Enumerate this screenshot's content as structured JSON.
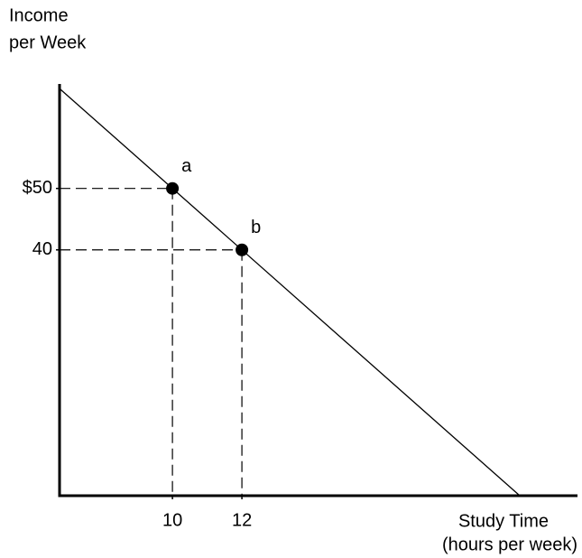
{
  "chart_data": {
    "type": "line",
    "y_label": [
      "Income",
      "per Week"
    ],
    "x_label": [
      "Study Time",
      "(hours per week)"
    ],
    "x": [
      6.75,
      20
    ],
    "values": [
      66.25,
      0
    ],
    "color": "#000000",
    "points": [
      {
        "label": "a",
        "x": 10,
        "y": 50
      },
      {
        "label": "b",
        "x": 12,
        "y": 40
      }
    ],
    "xlim": [
      6.75,
      21.35
    ],
    "ylim": [
      0,
      67
    ],
    "xticks": [
      10,
      12
    ],
    "yticks": [
      {
        "value": 50,
        "label": "$50"
      },
      40
    ]
  }
}
